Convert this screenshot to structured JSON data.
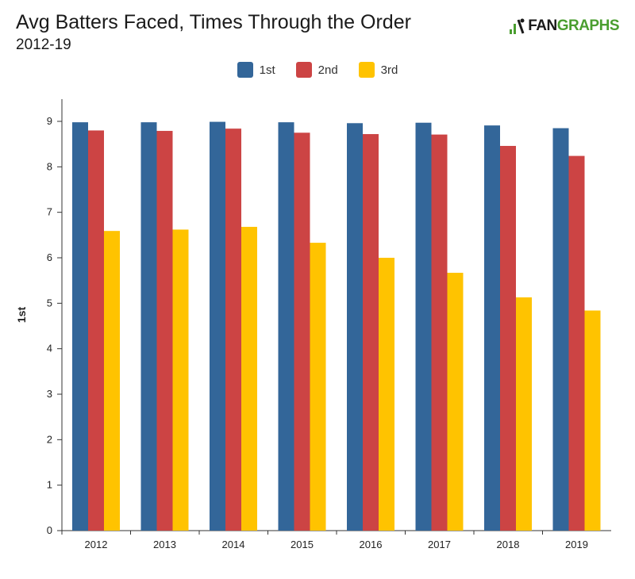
{
  "header": {
    "title": "Avg Batters Faced, Times Through the Order",
    "subtitle": "2012-19",
    "logo_fan": "FAN",
    "logo_graphs": "GRAPHS"
  },
  "colors": {
    "s1": "#336699",
    "s2": "#cc4444",
    "s3": "#ffc300",
    "logo_green": "#4a9e2f"
  },
  "chart_data": {
    "type": "bar",
    "title": "Avg Batters Faced, Times Through the Order",
    "subtitle": "2012-19",
    "ylabel": "1st",
    "xlabel": "",
    "ylim": [
      0,
      9
    ],
    "yticks": [
      0,
      1,
      2,
      3,
      4,
      5,
      6,
      7,
      8,
      9
    ],
    "grid": false,
    "legend": "top-center",
    "categories": [
      "2012",
      "2013",
      "2014",
      "2015",
      "2016",
      "2017",
      "2018",
      "2019"
    ],
    "series": [
      {
        "name": "1st",
        "color": "#336699",
        "values": [
          8.98,
          8.98,
          8.99,
          8.98,
          8.96,
          8.97,
          8.91,
          8.85
        ]
      },
      {
        "name": "2nd",
        "color": "#cc4444",
        "values": [
          8.8,
          8.79,
          8.84,
          8.75,
          8.72,
          8.71,
          8.46,
          8.24
        ]
      },
      {
        "name": "3rd",
        "color": "#ffc300",
        "values": [
          6.59,
          6.62,
          6.68,
          6.33,
          6.0,
          5.67,
          5.13,
          4.84
        ]
      }
    ]
  }
}
